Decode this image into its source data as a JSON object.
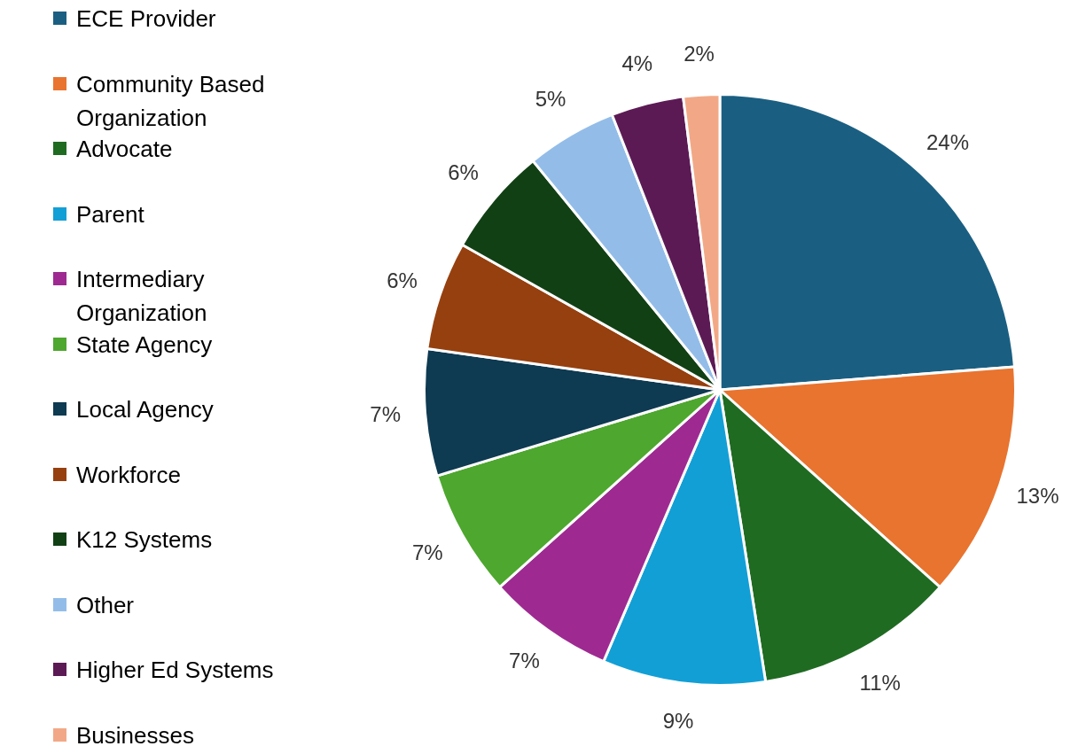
{
  "chart_data": {
    "type": "pie",
    "categories": [
      "ECE Provider",
      "Community Based Organization",
      "Advocate",
      "Parent",
      "Intermediary Organization",
      "State Agency",
      "Local Agency",
      "Workforce",
      "K12 Systems",
      "Other",
      "Higher Ed Systems",
      "Businesses"
    ],
    "values": [
      24,
      13,
      11,
      9,
      7,
      7,
      7,
      6,
      6,
      5,
      4,
      2
    ],
    "value_labels": [
      "24%",
      "13%",
      "11%",
      "9%",
      "7%",
      "7%",
      "7%",
      "6%",
      "6%",
      "5%",
      "4%",
      "2%"
    ],
    "colors": [
      "#1a5f82",
      "#e8742f",
      "#1f6b22",
      "#129fd6",
      "#9e2a91",
      "#4ea72e",
      "#0e3a52",
      "#96400f",
      "#124015",
      "#93bde8",
      "#5c1a55",
      "#f2a886"
    ],
    "legend": "left"
  }
}
